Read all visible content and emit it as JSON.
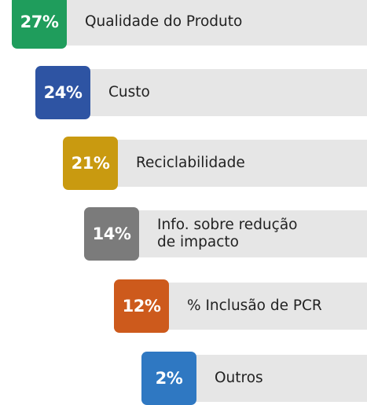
{
  "items": [
    {
      "percent": "27%",
      "label": [
        "Qualidade do Produto"
      ],
      "color": "#1f9d5c"
    },
    {
      "percent": "24%",
      "label": [
        "Custo"
      ],
      "color": "#2e54a3"
    },
    {
      "percent": "21%",
      "label": [
        "Reciclabilidade"
      ],
      "color": "#c99a10"
    },
    {
      "percent": "14%",
      "label": [
        "Info. sobre redução",
        "de impacto"
      ],
      "color": "#7b7b7b"
    },
    {
      "percent": "12%",
      "label": [
        "% Inclusão de PCR"
      ],
      "color": "#cd5a1c"
    },
    {
      "percent": "2%",
      "label": [
        "Outros"
      ],
      "color": "#2f78c2"
    }
  ]
}
